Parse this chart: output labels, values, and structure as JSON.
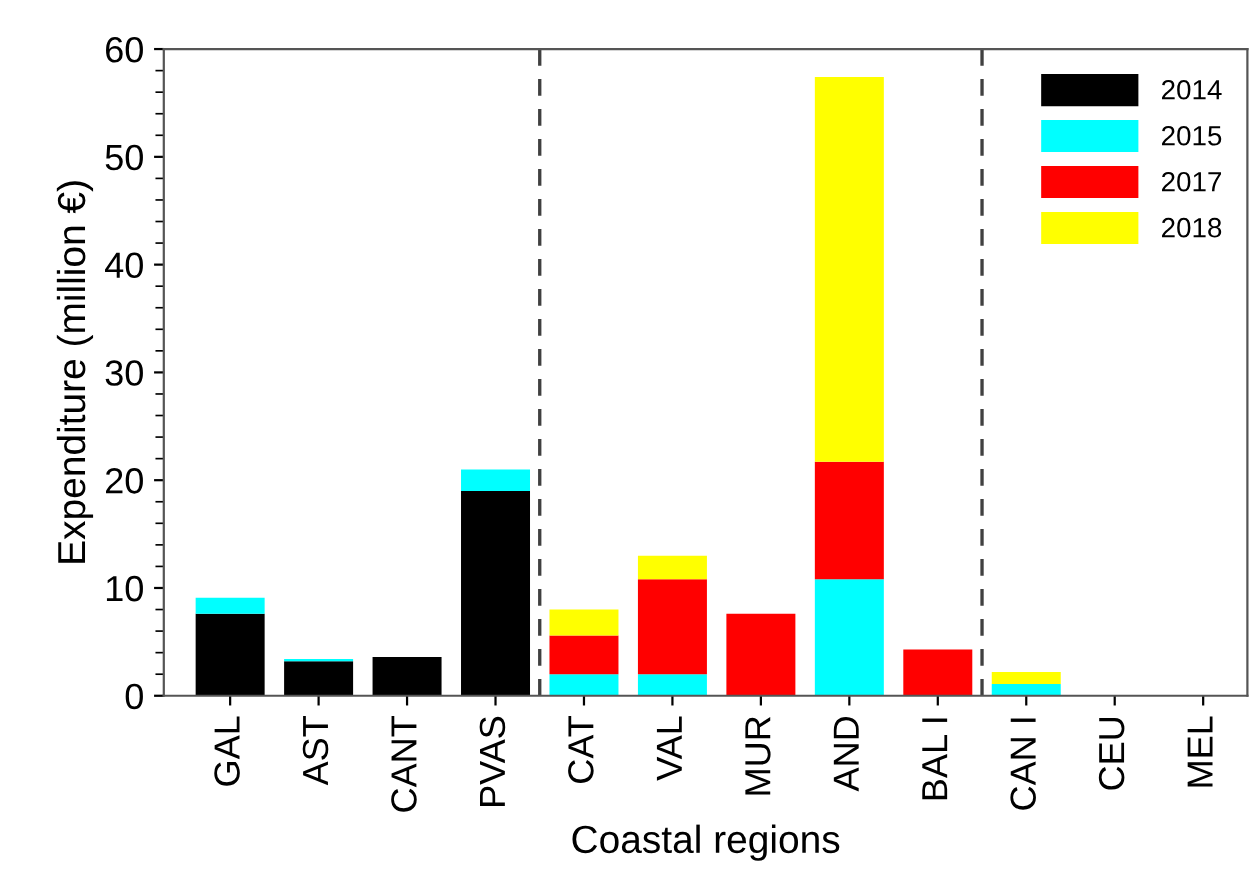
{
  "chart_data": {
    "type": "bar",
    "stacked": true,
    "xlabel": "Coastal regions",
    "ylabel": "Expenditure (million €)",
    "categories": [
      "GAL",
      "AST",
      "CANT",
      "PVAS",
      "CAT",
      "VAL",
      "MUR",
      "AND",
      "BAL I",
      "CAN I",
      "CEU",
      "MEL"
    ],
    "series": [
      {
        "name": "2014",
        "color": "#000000",
        "values": [
          7.6,
          3.2,
          3.6,
          19.0,
          0,
          0,
          0,
          0,
          0,
          0,
          0,
          0
        ]
      },
      {
        "name": "2015",
        "color": "#00ffff",
        "values": [
          1.5,
          0.2,
          0,
          2.0,
          2.0,
          2.0,
          0,
          10.8,
          0,
          1.1,
          0,
          0
        ]
      },
      {
        "name": "2017",
        "color": "#ff0000",
        "values": [
          0,
          0,
          0,
          0,
          3.6,
          8.8,
          7.6,
          10.9,
          4.3,
          0,
          0,
          0
        ]
      },
      {
        "name": "2018",
        "color": "#ffff00",
        "values": [
          0,
          0,
          0,
          0,
          2.4,
          2.2,
          0,
          35.7,
          0,
          1.1,
          0,
          0
        ]
      }
    ],
    "ylim": [
      0,
      60
    ],
    "yticks": [
      0,
      10,
      20,
      30,
      40,
      50,
      60
    ],
    "legend": "top right",
    "grid": false
  }
}
